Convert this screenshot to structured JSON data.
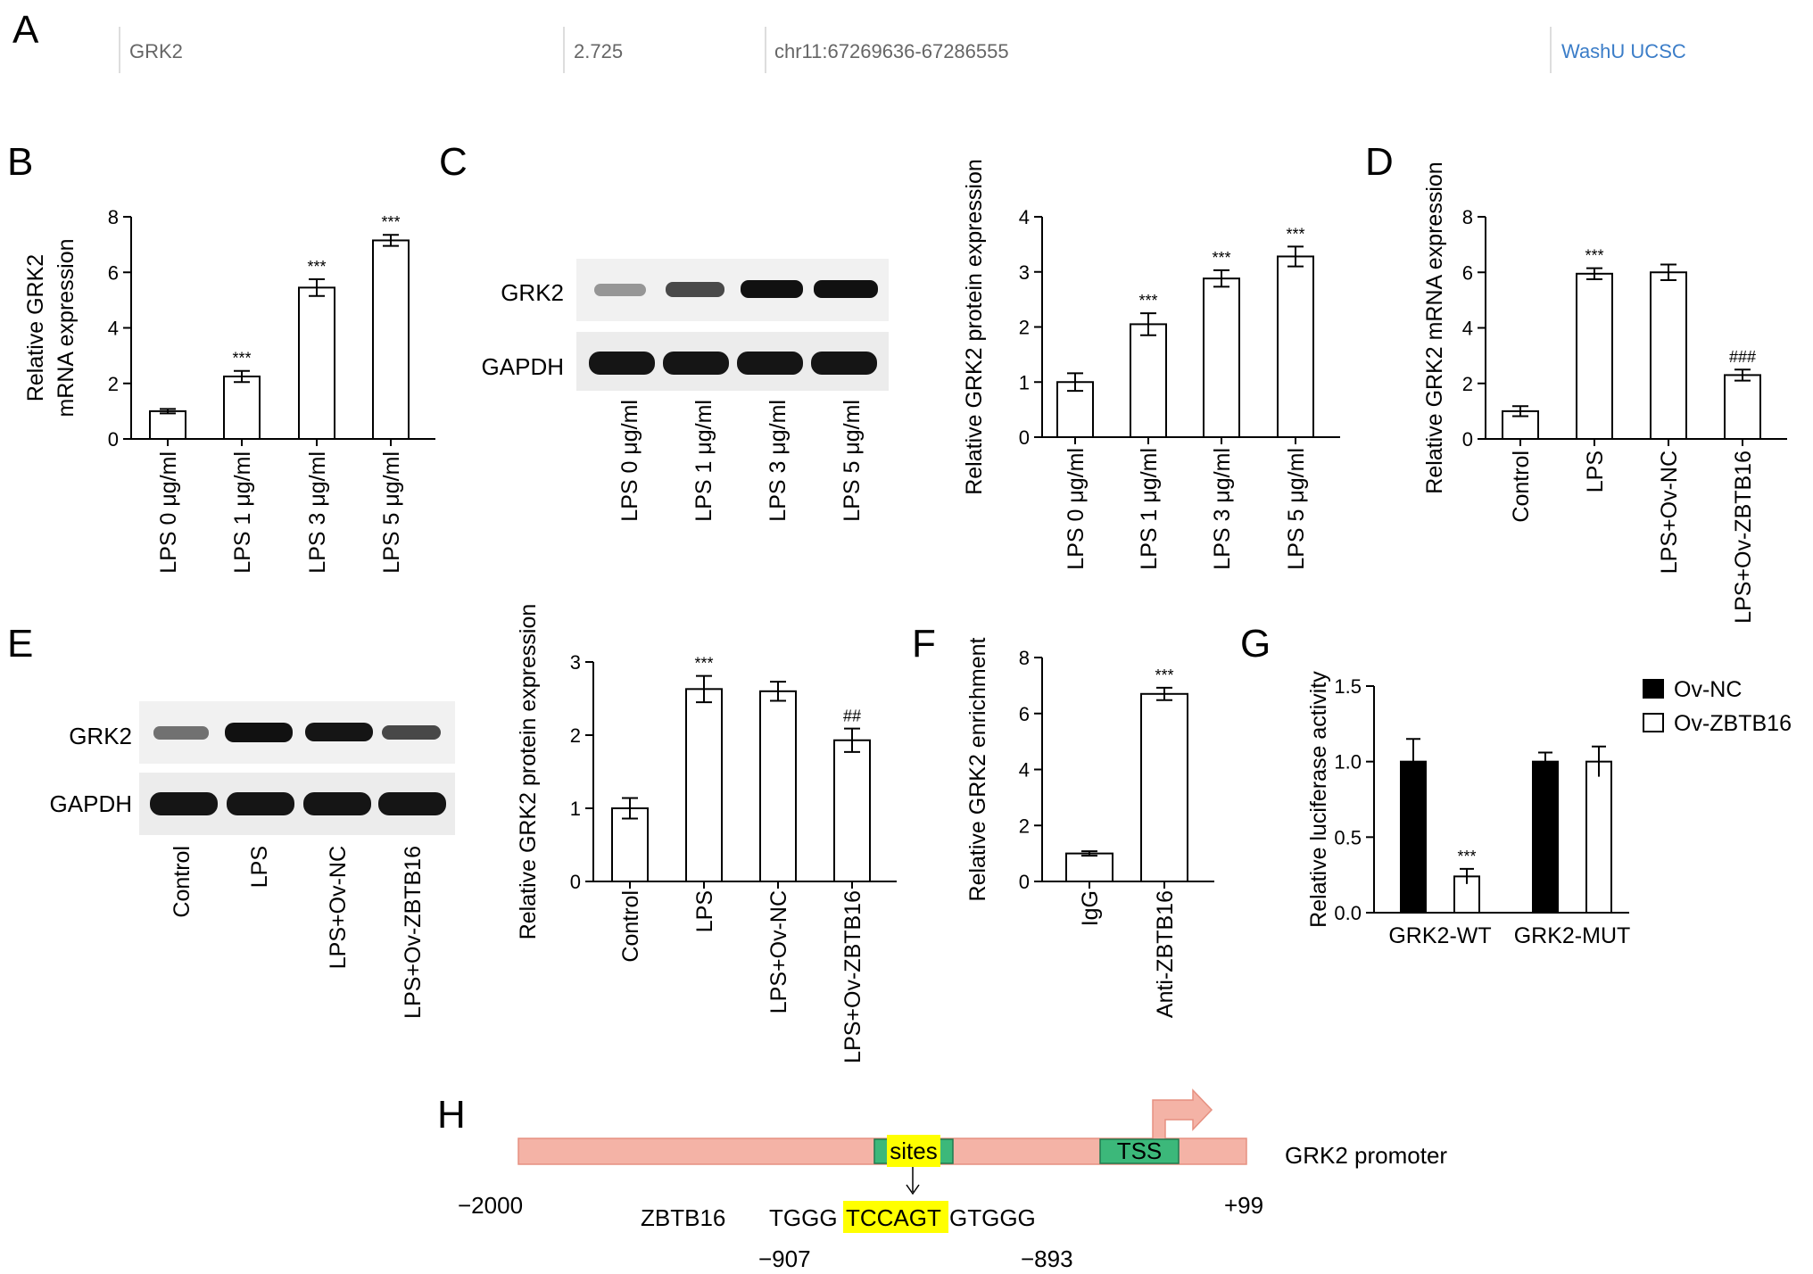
{
  "panels": {
    "A": {
      "letter": "A",
      "gene": "GRK2",
      "score": "2.725",
      "location": "chr11:67269636-67286555",
      "links": "WashU UCSC",
      "link_color": "#3b7dc8"
    },
    "B": {
      "letter": "B"
    },
    "C": {
      "letter": "C",
      "blot_labels": [
        "GRK2",
        "GAPDH"
      ]
    },
    "D": {
      "letter": "D"
    },
    "E": {
      "letter": "E",
      "blot_labels": [
        "GRK2",
        "GAPDH"
      ]
    },
    "F": {
      "letter": "F"
    },
    "G": {
      "letter": "G"
    },
    "H": {
      "letter": "H",
      "promoter_label": "GRK2 promoter",
      "sites_label": "sites",
      "tss_label": "TSS",
      "start": "−2000",
      "end": "+99",
      "factor": "ZBTB16",
      "seq_prefix": "TGGG",
      "seq_site": "TCCAGT",
      "seq_suffix": "GTGGG",
      "pos_start": "−907",
      "pos_end": "−893",
      "promoter_color": "#f4b3a6",
      "box_color": "#3cb87a",
      "highlight_color": "#ffff00"
    }
  },
  "chart_data": [
    {
      "id": "B",
      "type": "bar",
      "categories": [
        "LPS 0 μg/ml",
        "LPS 1 μg/ml",
        "LPS 3 μg/ml",
        "LPS 5 μg/ml"
      ],
      "values": [
        1.0,
        2.25,
        5.45,
        7.15
      ],
      "errors": [
        0.08,
        0.2,
        0.3,
        0.2
      ],
      "significance": [
        "",
        "***",
        "***",
        "***"
      ],
      "ylabel": [
        "Relative GRK2",
        "mRNA expression"
      ],
      "ylim": [
        0,
        8
      ],
      "yticks": [
        "0",
        "2",
        "4",
        "6",
        "8"
      ]
    },
    {
      "id": "C",
      "type": "bar",
      "categories": [
        "LPS 0 μg/ml",
        "LPS 1 μg/ml",
        "LPS 3 μg/ml",
        "LPS 5 μg/ml"
      ],
      "values": [
        1.0,
        2.05,
        2.88,
        3.28
      ],
      "errors": [
        0.16,
        0.2,
        0.15,
        0.18
      ],
      "significance": [
        "",
        "***",
        "***",
        "***"
      ],
      "ylabel": [
        "Relative GRK2 protein expression"
      ],
      "ylim": [
        0,
        4
      ],
      "yticks": [
        "0",
        "1",
        "2",
        "3",
        "4"
      ]
    },
    {
      "id": "D",
      "type": "bar",
      "categories": [
        "Control",
        "LPS",
        "LPS+Ov-NC",
        "LPS+Ov-ZBTB16"
      ],
      "values": [
        1.0,
        5.95,
        6.0,
        2.3
      ],
      "errors": [
        0.18,
        0.2,
        0.28,
        0.2
      ],
      "significance": [
        "",
        "***",
        "",
        "###"
      ],
      "ylabel": [
        "Relative GRK2 mRNA expression"
      ],
      "ylim": [
        0,
        8
      ],
      "yticks": [
        "0",
        "2",
        "4",
        "6",
        "8"
      ]
    },
    {
      "id": "E",
      "type": "bar",
      "categories": [
        "Control",
        "LPS",
        "LPS+Ov-NC",
        "LPS+Ov-ZBTB16"
      ],
      "values": [
        1.0,
        2.63,
        2.6,
        1.93
      ],
      "errors": [
        0.14,
        0.18,
        0.13,
        0.16
      ],
      "significance": [
        "",
        "***",
        "",
        "##"
      ],
      "ylabel": [
        "Relative GRK2 protein expression"
      ],
      "ylim": [
        0,
        3
      ],
      "yticks": [
        "0",
        "1",
        "2",
        "3"
      ]
    },
    {
      "id": "F",
      "type": "bar",
      "categories": [
        "IgG",
        "Anti-ZBTB16"
      ],
      "values": [
        1.0,
        6.7
      ],
      "errors": [
        0.08,
        0.22
      ],
      "significance": [
        "",
        "***"
      ],
      "ylabel": [
        "Relative GRK2 enrichment"
      ],
      "ylim": [
        0,
        8
      ],
      "yticks": [
        "0",
        "2",
        "4",
        "6",
        "8"
      ]
    },
    {
      "id": "G",
      "type": "bar",
      "categories": [
        "GRK2-WT",
        "GRK2-MUT"
      ],
      "series": [
        {
          "name": "Ov-NC",
          "values": [
            1.0,
            1.0
          ],
          "errors": [
            0.15,
            0.06
          ],
          "significance": [
            "",
            ""
          ],
          "fill": "#000000"
        },
        {
          "name": "Ov-ZBTB16",
          "values": [
            0.24,
            1.0
          ],
          "errors": [
            0.05,
            0.1
          ],
          "significance": [
            "***",
            ""
          ],
          "fill": "#ffffff"
        }
      ],
      "ylabel": [
        "Relative luciferase activity"
      ],
      "ylim": [
        0,
        1.5
      ],
      "yticks": [
        "0.0",
        "0.5",
        "1.0",
        "1.5"
      ],
      "legend_position": "top-right"
    }
  ]
}
